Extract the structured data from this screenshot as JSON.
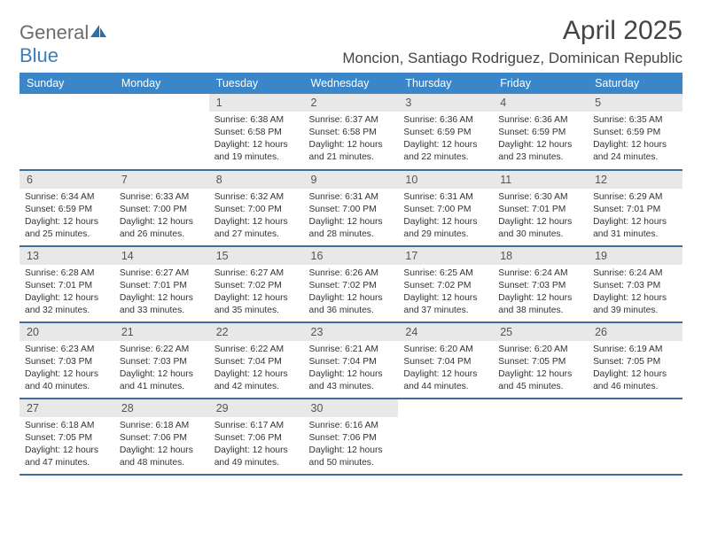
{
  "header": {
    "logo_a": "General",
    "logo_b": "Blue",
    "title": "April 2025",
    "location": "Moncion, Santiago Rodriguez, Dominican Republic"
  },
  "colors": {
    "header_bg": "#3a86c8",
    "header_fg": "#ffffff",
    "row_border": "#3a6fa0",
    "daynum_bg": "#e8e8e8",
    "logo_gray": "#6c6c6c",
    "logo_blue": "#3a7ebf",
    "text": "#333333",
    "page_bg": "#ffffff"
  },
  "typography": {
    "title_fontsize": 30,
    "location_fontsize": 17,
    "logo_fontsize": 22,
    "header_fontsize": 12.5,
    "daynum_fontsize": 12.5,
    "body_fontsize": 10.3
  },
  "labels": {
    "sunrise": "Sunrise:",
    "sunset": "Sunset:",
    "daylight": "Daylight:"
  },
  "day_headers": [
    "Sunday",
    "Monday",
    "Tuesday",
    "Wednesday",
    "Thursday",
    "Friday",
    "Saturday"
  ],
  "weeks": [
    [
      null,
      null,
      {
        "n": "1",
        "sunrise": "6:38 AM",
        "sunset": "6:58 PM",
        "daylight": "12 hours and 19 minutes."
      },
      {
        "n": "2",
        "sunrise": "6:37 AM",
        "sunset": "6:58 PM",
        "daylight": "12 hours and 21 minutes."
      },
      {
        "n": "3",
        "sunrise": "6:36 AM",
        "sunset": "6:59 PM",
        "daylight": "12 hours and 22 minutes."
      },
      {
        "n": "4",
        "sunrise": "6:36 AM",
        "sunset": "6:59 PM",
        "daylight": "12 hours and 23 minutes."
      },
      {
        "n": "5",
        "sunrise": "6:35 AM",
        "sunset": "6:59 PM",
        "daylight": "12 hours and 24 minutes."
      }
    ],
    [
      {
        "n": "6",
        "sunrise": "6:34 AM",
        "sunset": "6:59 PM",
        "daylight": "12 hours and 25 minutes."
      },
      {
        "n": "7",
        "sunrise": "6:33 AM",
        "sunset": "7:00 PM",
        "daylight": "12 hours and 26 minutes."
      },
      {
        "n": "8",
        "sunrise": "6:32 AM",
        "sunset": "7:00 PM",
        "daylight": "12 hours and 27 minutes."
      },
      {
        "n": "9",
        "sunrise": "6:31 AM",
        "sunset": "7:00 PM",
        "daylight": "12 hours and 28 minutes."
      },
      {
        "n": "10",
        "sunrise": "6:31 AM",
        "sunset": "7:00 PM",
        "daylight": "12 hours and 29 minutes."
      },
      {
        "n": "11",
        "sunrise": "6:30 AM",
        "sunset": "7:01 PM",
        "daylight": "12 hours and 30 minutes."
      },
      {
        "n": "12",
        "sunrise": "6:29 AM",
        "sunset": "7:01 PM",
        "daylight": "12 hours and 31 minutes."
      }
    ],
    [
      {
        "n": "13",
        "sunrise": "6:28 AM",
        "sunset": "7:01 PM",
        "daylight": "12 hours and 32 minutes."
      },
      {
        "n": "14",
        "sunrise": "6:27 AM",
        "sunset": "7:01 PM",
        "daylight": "12 hours and 33 minutes."
      },
      {
        "n": "15",
        "sunrise": "6:27 AM",
        "sunset": "7:02 PM",
        "daylight": "12 hours and 35 minutes."
      },
      {
        "n": "16",
        "sunrise": "6:26 AM",
        "sunset": "7:02 PM",
        "daylight": "12 hours and 36 minutes."
      },
      {
        "n": "17",
        "sunrise": "6:25 AM",
        "sunset": "7:02 PM",
        "daylight": "12 hours and 37 minutes."
      },
      {
        "n": "18",
        "sunrise": "6:24 AM",
        "sunset": "7:03 PM",
        "daylight": "12 hours and 38 minutes."
      },
      {
        "n": "19",
        "sunrise": "6:24 AM",
        "sunset": "7:03 PM",
        "daylight": "12 hours and 39 minutes."
      }
    ],
    [
      {
        "n": "20",
        "sunrise": "6:23 AM",
        "sunset": "7:03 PM",
        "daylight": "12 hours and 40 minutes."
      },
      {
        "n": "21",
        "sunrise": "6:22 AM",
        "sunset": "7:03 PM",
        "daylight": "12 hours and 41 minutes."
      },
      {
        "n": "22",
        "sunrise": "6:22 AM",
        "sunset": "7:04 PM",
        "daylight": "12 hours and 42 minutes."
      },
      {
        "n": "23",
        "sunrise": "6:21 AM",
        "sunset": "7:04 PM",
        "daylight": "12 hours and 43 minutes."
      },
      {
        "n": "24",
        "sunrise": "6:20 AM",
        "sunset": "7:04 PM",
        "daylight": "12 hours and 44 minutes."
      },
      {
        "n": "25",
        "sunrise": "6:20 AM",
        "sunset": "7:05 PM",
        "daylight": "12 hours and 45 minutes."
      },
      {
        "n": "26",
        "sunrise": "6:19 AM",
        "sunset": "7:05 PM",
        "daylight": "12 hours and 46 minutes."
      }
    ],
    [
      {
        "n": "27",
        "sunrise": "6:18 AM",
        "sunset": "7:05 PM",
        "daylight": "12 hours and 47 minutes."
      },
      {
        "n": "28",
        "sunrise": "6:18 AM",
        "sunset": "7:06 PM",
        "daylight": "12 hours and 48 minutes."
      },
      {
        "n": "29",
        "sunrise": "6:17 AM",
        "sunset": "7:06 PM",
        "daylight": "12 hours and 49 minutes."
      },
      {
        "n": "30",
        "sunrise": "6:16 AM",
        "sunset": "7:06 PM",
        "daylight": "12 hours and 50 minutes."
      },
      null,
      null,
      null
    ]
  ]
}
